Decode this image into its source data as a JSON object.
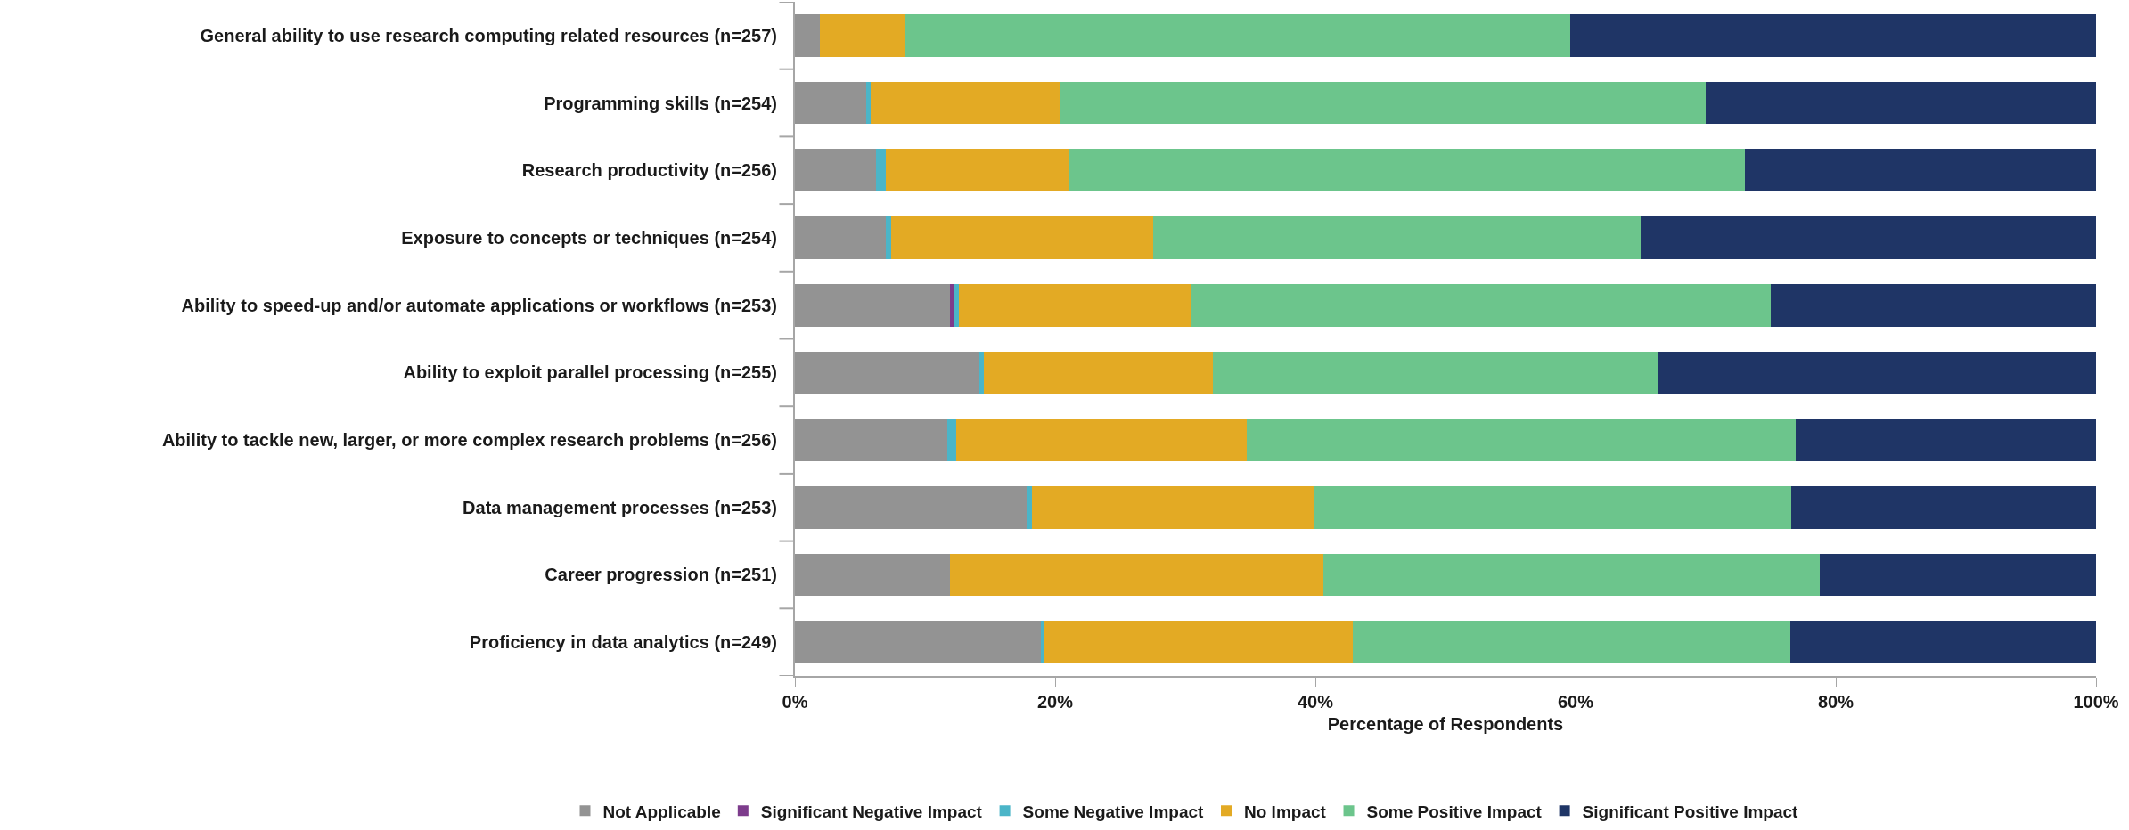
{
  "chart_data": {
    "type": "bar",
    "orientation": "horizontal",
    "stacked": true,
    "xlabel": "Percentage of Respondents",
    "categories": [
      "General ability to use research computing related resources (n=257)",
      "Programming skills (n=254)",
      "Research productivity (n=256)",
      "Exposure to concepts or techniques (n=254)",
      "Ability to speed-up and/or automate applications or workflows (n=253)",
      "Ability to exploit parallel processing (n=255)",
      "Ability to tackle new, larger, or more complex research problems (n=256)",
      "Data management processes (n=253)",
      "Career progression (n=251)",
      "Proficiency in data analytics (n=249)"
    ],
    "series": [
      {
        "name": "Not Applicable",
        "color": "#939393",
        "values": [
          1.9,
          5.5,
          6.2,
          7.0,
          11.9,
          14.1,
          11.7,
          17.8,
          11.9,
          18.9
        ]
      },
      {
        "name": "Significant Negative Impact",
        "color": "#7d3c8c",
        "values": [
          0,
          0,
          0,
          0,
          0.3,
          0,
          0,
          0,
          0,
          0
        ]
      },
      {
        "name": "Some Negative Impact",
        "color": "#4bb5c8",
        "values": [
          0,
          0.3,
          0.8,
          0.4,
          0.4,
          0.4,
          0.7,
          0.4,
          0,
          0.3
        ]
      },
      {
        "name": "No Impact",
        "color": "#e3aa24",
        "values": [
          6.6,
          14.6,
          14.0,
          20.1,
          17.8,
          17.6,
          22.3,
          21.7,
          28.7,
          23.7
        ]
      },
      {
        "name": "Some Positive Impact",
        "color": "#6cc58c",
        "values": [
          51.1,
          49.6,
          52.0,
          37.5,
          44.6,
          34.2,
          42.2,
          36.7,
          38.2,
          33.6
        ]
      },
      {
        "name": "Significant Positive Impact",
        "color": "#1f3566",
        "values": [
          40.4,
          30.0,
          27.0,
          35.0,
          25.0,
          33.7,
          23.1,
          23.4,
          21.2,
          23.5
        ]
      }
    ],
    "xlim": [
      0,
      100
    ],
    "xticks": [
      {
        "value": 0,
        "label": "0%"
      },
      {
        "value": 20,
        "label": "20%"
      },
      {
        "value": 40,
        "label": "40%"
      },
      {
        "value": 60,
        "label": "60%"
      },
      {
        "value": 80,
        "label": "80%"
      },
      {
        "value": 100,
        "label": "100%"
      }
    ],
    "legend": "bottom"
  }
}
